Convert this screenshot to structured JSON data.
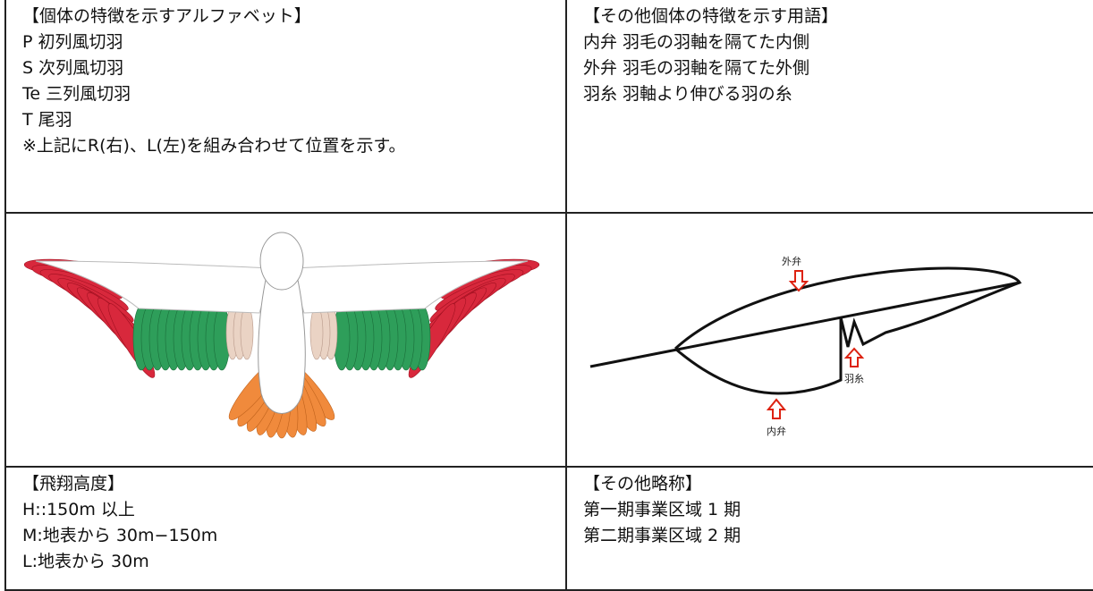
{
  "top_left": {
    "title": "【個体の特徴を示すアルファベット】",
    "lines": [
      "P 初列風切羽",
      "S 次列風切羽",
      "Te 三列風切羽",
      "T 尾羽",
      "※上記にR(右)、L(左)を組み合わせて位置を示す。"
    ]
  },
  "top_right": {
    "title": "【その他個体の特徴を示す用語】",
    "lines": [
      "内弁 羽毛の羽軸を隔てた内側",
      "外弁 羽毛の羽軸を隔てた外側",
      "羽糸 羽軸より伸びる羽の糸"
    ]
  },
  "feather_diagram": {
    "labels": [
      "外弁",
      "羽糸",
      "内弁"
    ]
  },
  "bottom_left": {
    "title": "【飛翔高度】",
    "lines": [
      "H::150m 以上",
      "M:地表から 30m−150m",
      "L:地表から 30m"
    ]
  },
  "bottom_right": {
    "title": "【その他略称】",
    "lines": [
      "第一期事業区域 1 期",
      "第二期事業区域 2 期"
    ]
  }
}
